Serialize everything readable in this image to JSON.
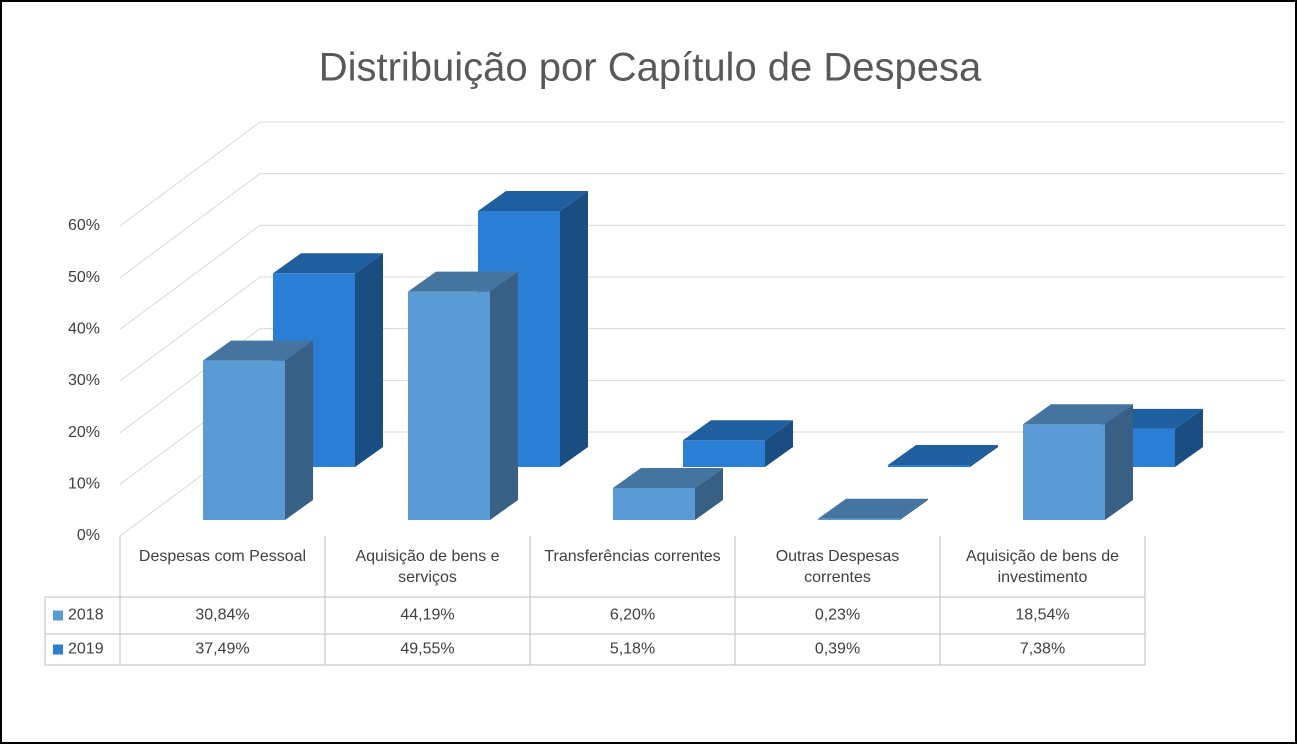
{
  "chart_data": {
    "type": "bar3d",
    "title": "Distribuição por Capítulo de Despesa",
    "categories": [
      "Despesas com Pessoal",
      "Aquisição de bens e serviços",
      "Transferências correntes",
      "Outras Despesas correntes",
      "Aquisição de bens de investimento"
    ],
    "series": [
      {
        "name": "2018",
        "color": "#5b9bd5",
        "values": [
          30.84,
          44.19,
          6.2,
          0.23,
          18.54
        ],
        "value_labels": [
          "30,84%",
          "44,19%",
          "6,20%",
          "0,23%",
          "18,54%"
        ]
      },
      {
        "name": "2019",
        "color": "#2a7fd4",
        "values": [
          37.49,
          49.55,
          5.18,
          0.39,
          7.38
        ],
        "value_labels": [
          "37,49%",
          "49,55%",
          "5,18%",
          "0,39%",
          "7,38%"
        ]
      }
    ],
    "ylim": [
      0,
      60
    ],
    "yticks": [
      {
        "value": 0,
        "label": "0%"
      },
      {
        "value": 10,
        "label": "10%"
      },
      {
        "value": 20,
        "label": "20%"
      },
      {
        "value": 30,
        "label": "30%"
      },
      {
        "value": 40,
        "label": "40%"
      },
      {
        "value": 50,
        "label": "50%"
      },
      {
        "value": 60,
        "label": "60%"
      }
    ],
    "grid": true
  }
}
